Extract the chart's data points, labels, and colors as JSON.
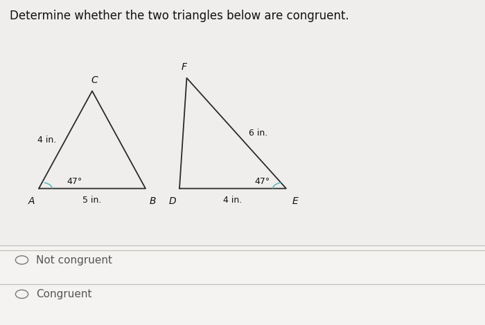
{
  "background_color": "#f0eeec",
  "title": "Determine whether the two triangles below are congruent.",
  "title_fontsize": 12,
  "triangle1": {
    "A": [
      0.08,
      0.42
    ],
    "B": [
      0.3,
      0.42
    ],
    "C": [
      0.19,
      0.72
    ],
    "label_A": "A",
    "label_B": "B",
    "label_C": "C",
    "side_AC_label": "4 in.",
    "side_AB_label": "5 in.",
    "angle_A_label": "47°",
    "line_color": "#2a2a2a",
    "arc_color": "#5bbcbd"
  },
  "triangle2": {
    "D": [
      0.37,
      0.42
    ],
    "E": [
      0.59,
      0.42
    ],
    "F": [
      0.385,
      0.76
    ],
    "label_D": "D",
    "label_E": "E",
    "label_F": "F",
    "side_FE_label": "6 in.",
    "side_DE_label": "4 in.",
    "angle_E_label": "47°",
    "line_color": "#2a2a2a",
    "arc_color": "#5bbcbd"
  },
  "options": [
    {
      "text": "Not congruent"
    },
    {
      "text": "Congruent"
    }
  ],
  "option_fontsize": 11,
  "divider_color": "#c0bcb8",
  "text_color": "#555555"
}
